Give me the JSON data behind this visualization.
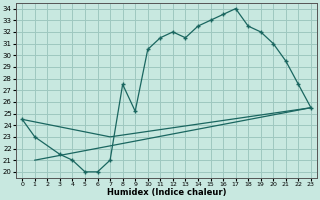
{
  "bg_color": "#c8e8e0",
  "grid_color": "#9ec8c0",
  "line_color": "#1a6660",
  "xlabel": "Humidex (Indice chaleur)",
  "xlim": [
    -0.5,
    23.5
  ],
  "ylim": [
    19.5,
    34.5
  ],
  "yticks": [
    20,
    21,
    22,
    23,
    24,
    25,
    26,
    27,
    28,
    29,
    30,
    31,
    32,
    33,
    34
  ],
  "xticks": [
    0,
    1,
    2,
    3,
    4,
    5,
    6,
    7,
    8,
    9,
    10,
    11,
    12,
    13,
    14,
    15,
    16,
    17,
    18,
    19,
    20,
    21,
    22,
    23
  ],
  "curve1_x": [
    0,
    1,
    3,
    4,
    5,
    6,
    7,
    8,
    9,
    10,
    11,
    12,
    13,
    14,
    15,
    16,
    17,
    18,
    19,
    20,
    21,
    22,
    23
  ],
  "curve1_y": [
    24.5,
    23.0,
    21.5,
    21.0,
    20.0,
    20.0,
    21.0,
    27.5,
    25.2,
    30.5,
    31.5,
    32.0,
    31.5,
    32.5,
    33.0,
    33.5,
    34.0,
    32.5,
    32.0,
    31.0,
    29.5,
    27.5,
    25.5
  ],
  "curve2_x": [
    0,
    7,
    23
  ],
  "curve2_y": [
    24.5,
    23.0,
    25.5
  ],
  "curve3_x": [
    1,
    23
  ],
  "curve3_y": [
    21.0,
    25.5
  ]
}
